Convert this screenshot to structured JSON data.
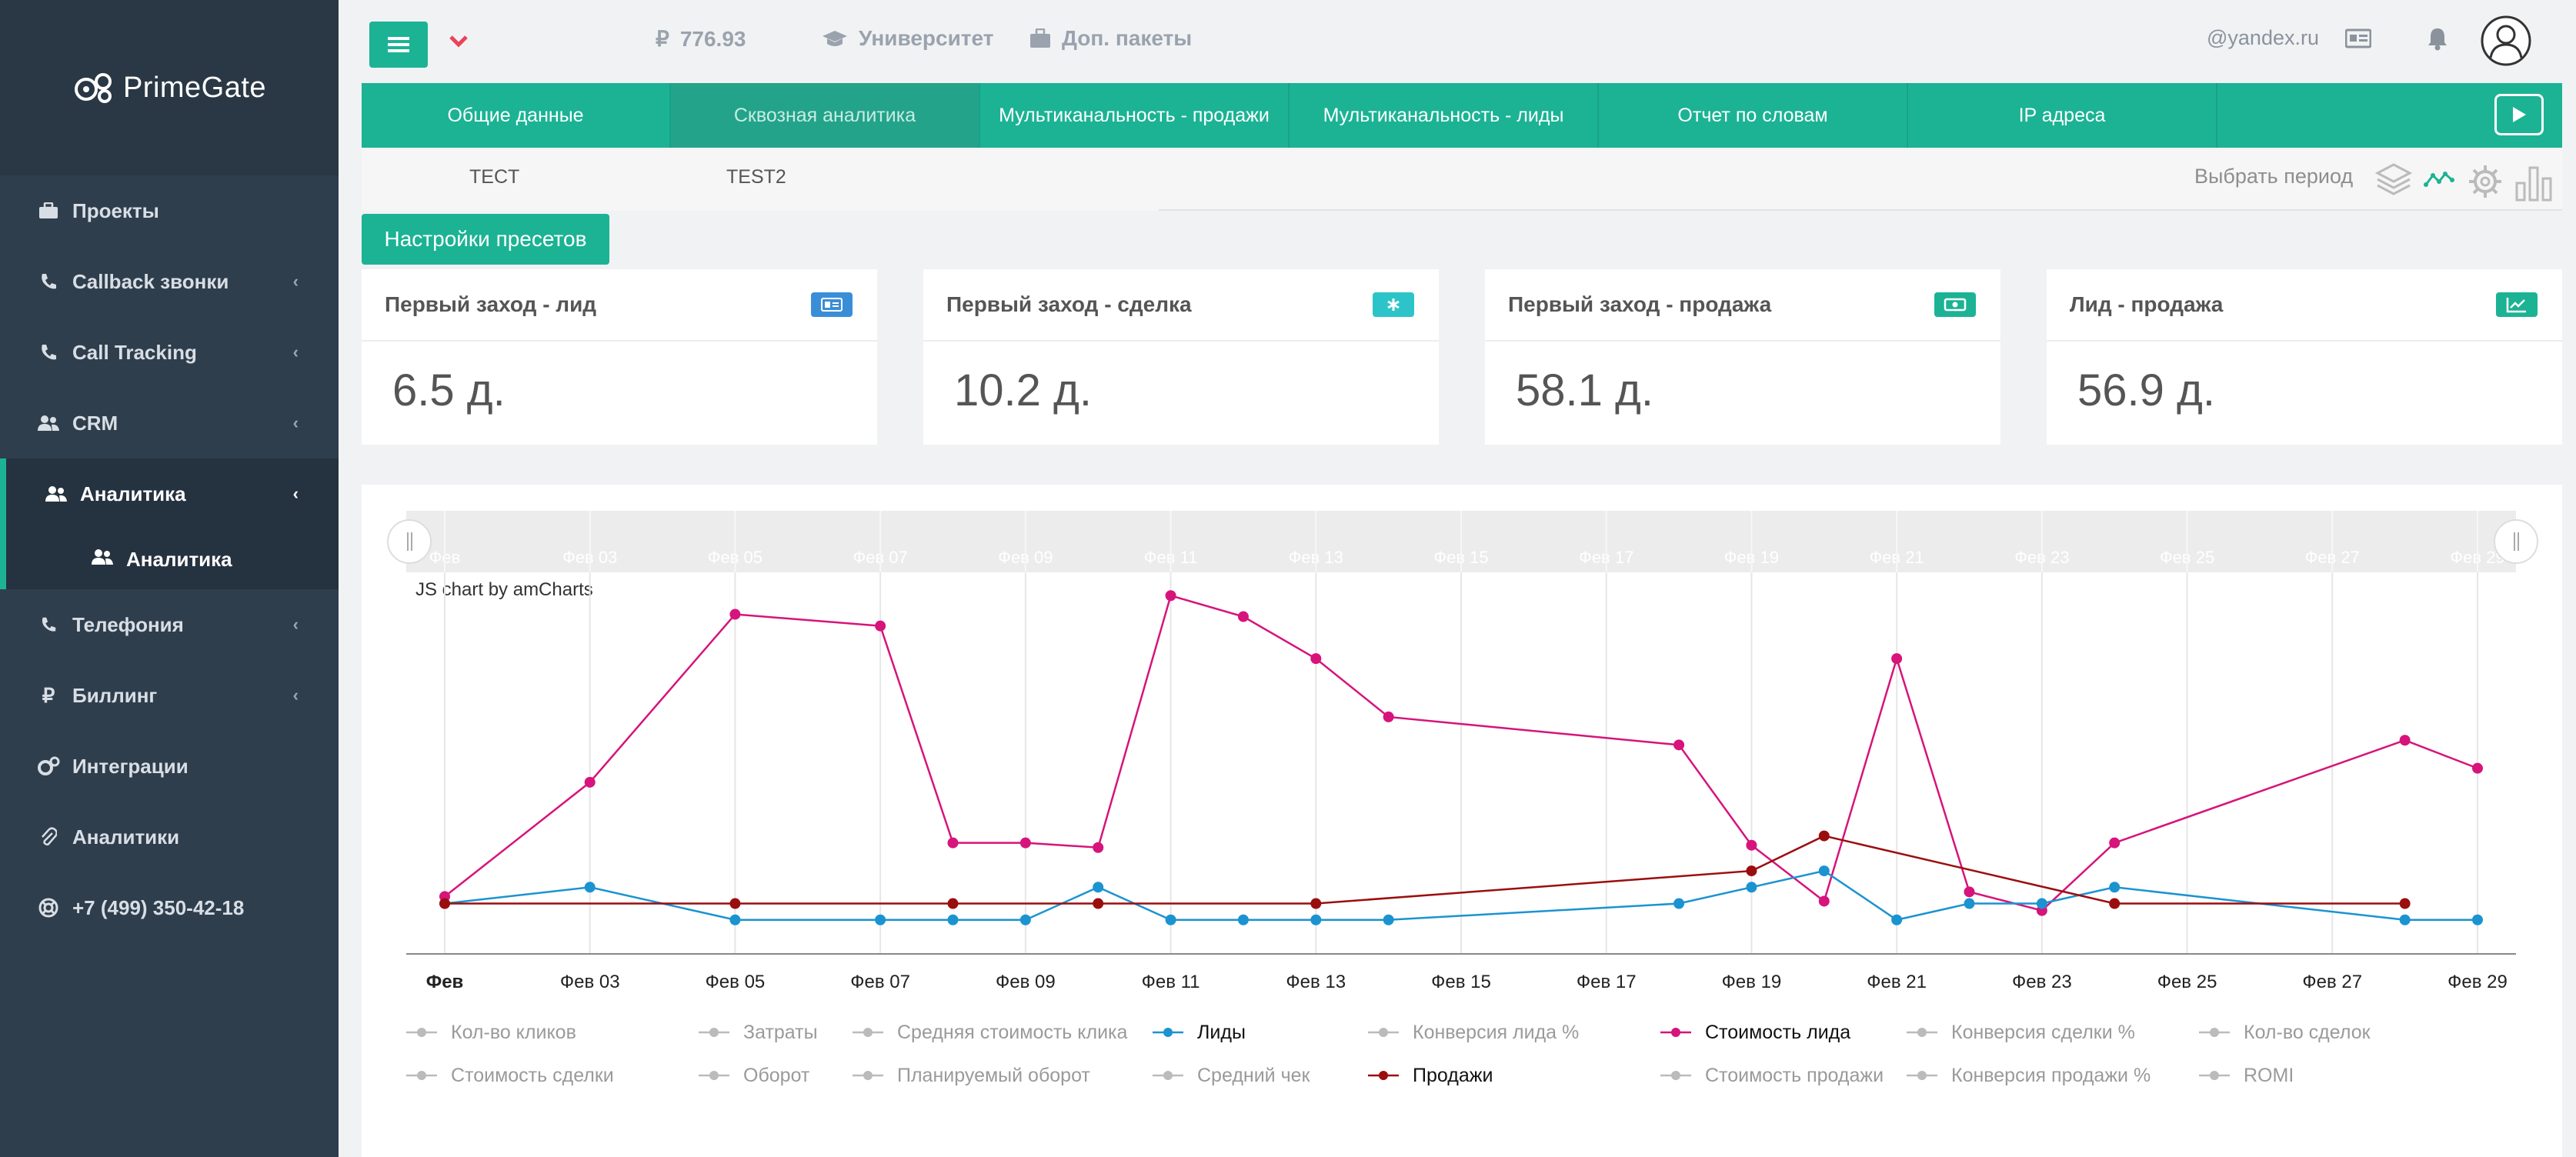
{
  "sidebar": {
    "logo": "PrimeGate",
    "items": [
      {
        "label": "Проекты",
        "icon": "briefcase-icon"
      },
      {
        "label": "Callback звонки",
        "icon": "phone-wave-icon"
      },
      {
        "label": "Call Tracking",
        "icon": "phone-wave-icon"
      },
      {
        "label": "CRM",
        "icon": "users-icon"
      },
      {
        "label": "Аналитика",
        "icon": "users-icon"
      },
      {
        "label": "Телефония",
        "icon": "phone-icon"
      },
      {
        "label": "Биллинг",
        "icon": "ruble-icon"
      },
      {
        "label": "Интеграции",
        "icon": "cogs-icon"
      },
      {
        "label": "Аналитики",
        "icon": "paperclip-icon"
      },
      {
        "label": "+7 (499) 350-42-18",
        "icon": "lifebuoy-icon"
      }
    ],
    "sub_item": {
      "label": "Аналитика",
      "icon": "users-icon"
    }
  },
  "topbar": {
    "balance": "776.93",
    "currency_symbol": "₽",
    "university": "Университет",
    "packages": "Доп. пакеты",
    "email": "@yandex.ru"
  },
  "tabs": [
    "Общие данные",
    "Сквозная аналитика",
    "Мультиканальность - продажи",
    "Мультиканальность - лиды",
    "Отчет по словам",
    "IP адреса"
  ],
  "subtabs": [
    "TECT",
    "TEST2"
  ],
  "period_label": "Выбрать период",
  "preset_button": "Настройки пресетов",
  "cards": [
    {
      "title": "Первый заход - лид",
      "value": "6.5 д.",
      "badge_color": "#3a8ed8"
    },
    {
      "title": "Первый заход - сделка",
      "value": "10.2 д.",
      "badge_color": "#2cc4c9"
    },
    {
      "title": "Первый заход - продажа",
      "value": "58.1 д.",
      "badge_color": "#1bb394"
    },
    {
      "title": "Лид - продажа",
      "value": "56.9 д.",
      "badge_color": "#1bb394"
    }
  ],
  "chart_data": {
    "type": "line",
    "credit": "JS chart by amCharts",
    "x_ticks": [
      "Фев",
      "Фев 03",
      "Фев 05",
      "Фев 07",
      "Фев 09",
      "Фев 11",
      "Фев 13",
      "Фев 15",
      "Фев 17",
      "Фев 19",
      "Фев 21",
      "Фев 23",
      "Фев 25",
      "Фев 27",
      "Фев 29"
    ],
    "series": [
      {
        "name": "Стоимость лида",
        "color": "#d6147b",
        "points": [
          [
            1,
            0.3
          ],
          [
            3,
            5.2
          ],
          [
            5,
            12.4
          ],
          [
            7,
            11.9
          ],
          [
            8,
            2.6
          ],
          [
            9,
            2.6
          ],
          [
            10,
            2.4
          ],
          [
            11,
            13.2
          ],
          [
            12,
            12.3
          ],
          [
            13,
            10.5
          ],
          [
            14,
            8.0
          ],
          [
            18,
            6.8
          ],
          [
            19,
            2.5
          ],
          [
            20,
            0.1
          ],
          [
            21,
            10.5
          ],
          [
            22,
            0.5
          ],
          [
            23,
            -0.3
          ],
          [
            24,
            2.6
          ],
          [
            28,
            7.0
          ],
          [
            29,
            5.8
          ]
        ]
      },
      {
        "name": "Лиды",
        "color": "#1b93d1",
        "points": [
          [
            1,
            0
          ],
          [
            3,
            0.7
          ],
          [
            5,
            -0.7
          ],
          [
            7,
            -0.7
          ],
          [
            8,
            -0.7
          ],
          [
            9,
            -0.7
          ],
          [
            10,
            0.7
          ],
          [
            11,
            -0.7
          ],
          [
            12,
            -0.7
          ],
          [
            13,
            -0.7
          ],
          [
            14,
            -0.7
          ],
          [
            18,
            0
          ],
          [
            19,
            0.7
          ],
          [
            20,
            1.4
          ],
          [
            21,
            -0.7
          ],
          [
            22,
            0
          ],
          [
            23,
            0
          ],
          [
            24,
            0.7
          ],
          [
            28,
            -0.7
          ],
          [
            29,
            -0.7
          ]
        ]
      },
      {
        "name": "Продажи",
        "color": "#9b0e0e",
        "points": [
          [
            1,
            0
          ],
          [
            5,
            0
          ],
          [
            8,
            0
          ],
          [
            10,
            0
          ],
          [
            13,
            0
          ],
          [
            19,
            1.4
          ],
          [
            20,
            2.9
          ],
          [
            24,
            0
          ],
          [
            28,
            0
          ]
        ]
      }
    ],
    "legend": [
      {
        "name": "Кол-во кликов",
        "active": false
      },
      {
        "name": "Затраты",
        "active": false
      },
      {
        "name": "Средняя стоимость клика",
        "active": false
      },
      {
        "name": "Лиды",
        "active": true,
        "color": "#1b93d1"
      },
      {
        "name": "Конверсия лида %",
        "active": false
      },
      {
        "name": "Стоимость лида",
        "active": true,
        "color": "#d6147b"
      },
      {
        "name": "Конверсия сделки %",
        "active": false
      },
      {
        "name": "Кол-во сделок",
        "active": false
      },
      {
        "name": "Стоимость сделки",
        "active": false
      },
      {
        "name": "Оборот",
        "active": false
      },
      {
        "name": "Планируемый оборот",
        "active": false
      },
      {
        "name": "Средний чек",
        "active": false
      },
      {
        "name": "Продажи",
        "active": true,
        "color": "#9b0e0e"
      },
      {
        "name": "Стоимость продажи",
        "active": false
      },
      {
        "name": "Конверсия продажи %",
        "active": false
      },
      {
        "name": "ROMI",
        "active": false
      }
    ]
  }
}
